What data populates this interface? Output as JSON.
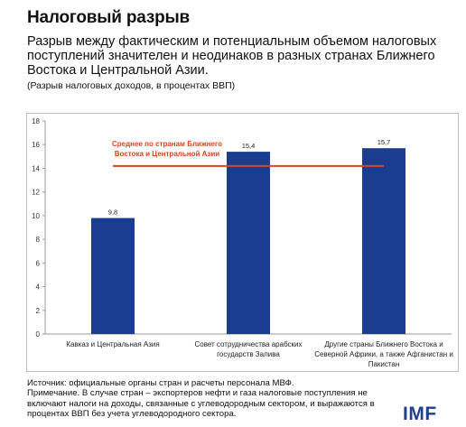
{
  "header": {
    "title": "Налоговый разрыв",
    "subtitle_lines": [
      "Разрыв между фактическим и потенциальным объемом налоговых",
      "поступлений значителен и неодинаков в разных странах Ближнего",
      "Востока и Центральной Азии."
    ],
    "unit": "(Разрыв налоговых доходов, в процентах ВВП)"
  },
  "chart_data": {
    "type": "bar",
    "categories": [
      [
        "Кавказ и Центральная Азия"
      ],
      [
        "Совет сотрудничества арабских",
        "государств Залива"
      ],
      [
        "Другие страны Ближнего Востока и",
        "Северной Африки, а также Афганистан и",
        "Пакистан"
      ]
    ],
    "values": [
      9.8,
      15.4,
      15.7
    ],
    "value_labels": [
      "9,8",
      "15,4",
      "15,7"
    ],
    "ylim": [
      0,
      18
    ],
    "yticks": [
      0,
      2,
      4,
      6,
      8,
      10,
      12,
      14,
      16,
      18
    ],
    "bar_color": "#1a3d8f",
    "average": {
      "value": 14.2,
      "label_lines": [
        "Среднее по странам Ближнего",
        "Востока и Центральной Азии"
      ],
      "color": "#e0421e"
    },
    "grid": false
  },
  "footer": {
    "lines": [
      "Источник: официальные органы стран и расчеты персонала МВФ.",
      "Примечание. В случае стран – экспортеров нефти и газа налоговые поступления не",
      "включают налоги на доходы, связанные с углеводородным сектором, и выражаются в",
      "процентах ВВП без учета углеводородного сектора."
    ],
    "logo": "IMF"
  }
}
